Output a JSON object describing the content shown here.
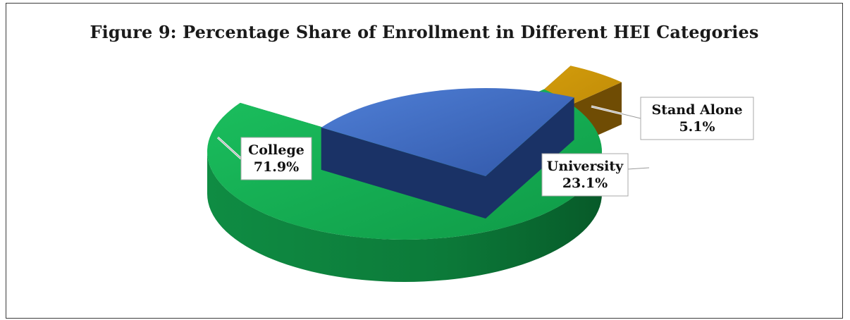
{
  "chart_data": {
    "type": "pie",
    "title": "Figure 9: Percentage Share of Enrollment in Different HEI Categories",
    "slices": [
      {
        "label": "College",
        "value": 71.9,
        "display": "71.9%",
        "color": "#13a54f"
      },
      {
        "label": "University",
        "value": 23.1,
        "display": "23.1%",
        "color": "#3a66bd"
      },
      {
        "label": "Stand Alone",
        "value": 5.1,
        "display": "5.1%",
        "color": "#c89206"
      }
    ],
    "exploded": true,
    "three_d": true,
    "legend": "none",
    "data_labels": "callout"
  }
}
